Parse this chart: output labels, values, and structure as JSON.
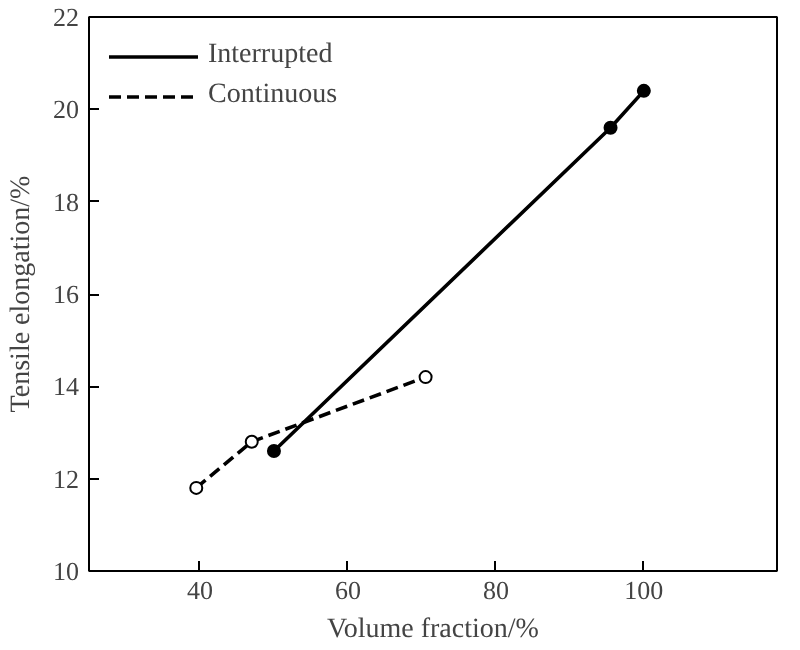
{
  "chart_data": {
    "type": "line",
    "xlabel": "Volume fraction/%",
    "ylabel": "Tensile elongation/%",
    "xlim": [
      25,
      118
    ],
    "xticks": [
      40,
      60,
      80,
      100
    ],
    "ylim": [
      10,
      22
    ],
    "yticks": [
      10,
      12,
      14,
      16,
      18,
      20,
      22
    ],
    "grid": false,
    "legend": "top left",
    "marker": "circle",
    "series": [
      {
        "name": "Interrupted",
        "color": "#000000",
        "line_style": "solid",
        "x": [
          50,
          95.5,
          100
        ],
        "values": [
          12.6,
          19.6,
          20.4
        ]
      },
      {
        "name": "Continuous",
        "color": "#000000",
        "line_style": "dashed",
        "x": [
          39.5,
          47,
          70.5
        ],
        "values": [
          11.8,
          12.8,
          14.2
        ]
      }
    ]
  }
}
